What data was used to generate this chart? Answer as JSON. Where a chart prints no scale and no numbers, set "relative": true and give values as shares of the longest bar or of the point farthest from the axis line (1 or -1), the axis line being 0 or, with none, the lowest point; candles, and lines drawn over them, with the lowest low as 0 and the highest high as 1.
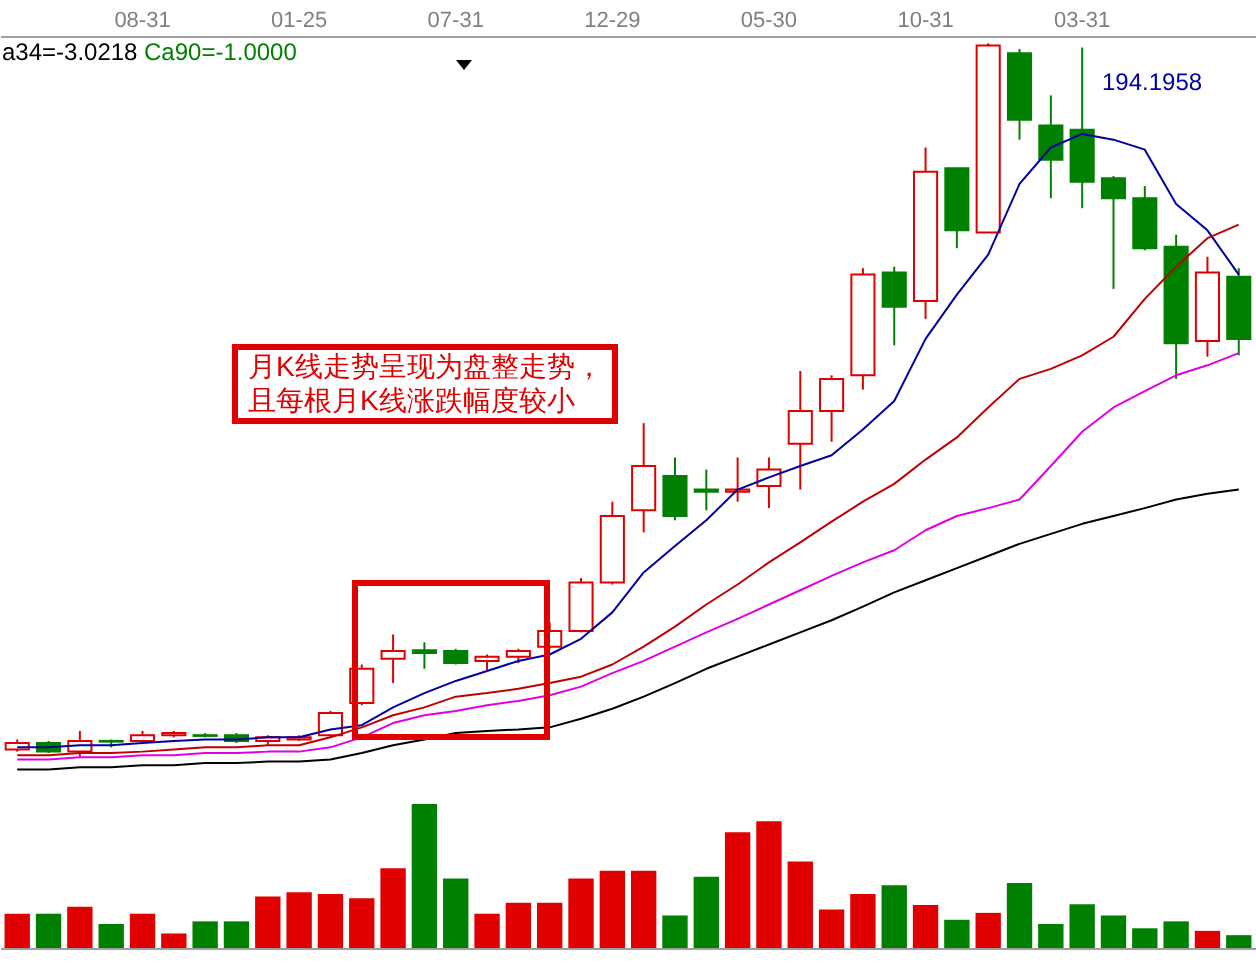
{
  "chart_data": [
    {
      "type": "candlestick",
      "relative": true,
      "categories": [
        null,
        null,
        null,
        null,
        "08-31",
        null,
        null,
        null,
        null,
        "01-25",
        null,
        null,
        null,
        null,
        "07-31",
        null,
        null,
        null,
        null,
        "12-29",
        null,
        null,
        null,
        null,
        "05-30",
        null,
        null,
        null,
        null,
        "10-31",
        null,
        null,
        null,
        null,
        "03-31",
        null,
        null,
        null,
        null,
        null
      ],
      "ohlc": [
        [
          0.011,
          0.025,
          0.008,
          0.02
        ],
        [
          0.02,
          0.023,
          0.006,
          0.008
        ],
        [
          0.008,
          0.037,
          0,
          0.023
        ],
        [
          0.023,
          0.025,
          0.014,
          0.022
        ],
        [
          0.023,
          0.037,
          0.02,
          0.031
        ],
        [
          0.031,
          0.037,
          0.028,
          0.034
        ],
        [
          0.031,
          0.034,
          0.028,
          0.03
        ],
        [
          0.031,
          0.034,
          0.02,
          0.023
        ],
        [
          0.023,
          0.031,
          0.017,
          0.028
        ],
        [
          0.025,
          0.031,
          0.023,
          0.028
        ],
        [
          0.031,
          0.065,
          0.028,
          0.062
        ],
        [
          0.076,
          0.13,
          0.073,
          0.124
        ],
        [
          0.138,
          0.172,
          0.104,
          0.149
        ],
        [
          0.15,
          0.161,
          0.124,
          0.146
        ],
        [
          0.149,
          0.152,
          0.13,
          0.132
        ],
        [
          0.135,
          0.144,
          0.121,
          0.141
        ],
        [
          0.141,
          0.152,
          0.132,
          0.149
        ],
        [
          0.155,
          0.189,
          0.152,
          0.177
        ],
        [
          0.177,
          0.251,
          0.175,
          0.245
        ],
        [
          0.245,
          0.358,
          0.242,
          0.338
        ],
        [
          0.346,
          0.468,
          0.315,
          0.408
        ],
        [
          0.394,
          0.42,
          0.332,
          0.338
        ],
        [
          0.375,
          0.403,
          0.346,
          0.372
        ],
        [
          0.372,
          0.42,
          0.358,
          0.375
        ],
        [
          0.38,
          0.42,
          0.349,
          0.403
        ],
        [
          0.439,
          0.541,
          0.375,
          0.485
        ],
        [
          0.485,
          0.535,
          0.442,
          0.53
        ],
        [
          0.535,
          0.685,
          0.515,
          0.676
        ],
        [
          0.679,
          0.687,
          0.577,
          0.631
        ],
        [
          0.639,
          0.854,
          0.614,
          0.82
        ],
        [
          0.825,
          0.825,
          0.713,
          0.738
        ],
        [
          0.735,
          1,
          0.735,
          0.997
        ],
        [
          0.986,
          0.992,
          0.865,
          0.893
        ],
        [
          0.885,
          0.927,
          0.783,
          0.837
        ],
        [
          0.879,
          0.994,
          0.769,
          0.806
        ],
        [
          0.811,
          0.814,
          0.656,
          0.783
        ],
        [
          0.783,
          0.8,
          0.71,
          0.713
        ],
        [
          0.715,
          0.732,
          0.53,
          0.58
        ],
        [
          0.583,
          0.701,
          0.561,
          0.679
        ],
        [
          0.673,
          0.685,
          0.563,
          0.586
        ]
      ],
      "colors": [
        "#e00000",
        "#008000",
        "#e00000",
        "#008000",
        "#e00000",
        "#e00000",
        "#008000",
        "#008000",
        "#e00000",
        "#e00000",
        "#e00000",
        "#e00000",
        "#e00000",
        "#008000",
        "#008000",
        "#e00000",
        "#e00000",
        "#e00000",
        "#e00000",
        "#e00000",
        "#e00000",
        "#008000",
        "#008000",
        "#e00000",
        "#e00000",
        "#e00000",
        "#e00000",
        "#e00000",
        "#008000",
        "#e00000",
        "#008000",
        "#e00000",
        "#008000",
        "#008000",
        "#008000",
        "#008000",
        "#008000",
        "#008000",
        "#e00000",
        "#008000"
      ],
      "series": [
        {
          "type": "line",
          "color": "#0000a0",
          "values": [
            0.014,
            0.014,
            0.017,
            0.017,
            0.02,
            0.023,
            0.025,
            0.025,
            0.028,
            0.028,
            0.039,
            0.045,
            0.07,
            0.09,
            0.107,
            0.121,
            0.135,
            0.144,
            0.166,
            0.203,
            0.259,
            0.296,
            0.332,
            0.375,
            0.392,
            0.408,
            0.423,
            0.459,
            0.499,
            0.586,
            0.648,
            0.704,
            0.803,
            0.854,
            0.873,
            0.865,
            0.851,
            0.775,
            0.738,
            0.676
          ]
        },
        {
          "type": "line",
          "color": "#c00000",
          "values": [
            0.003,
            0.003,
            0.006,
            0.006,
            0.008,
            0.011,
            0.014,
            0.014,
            0.017,
            0.017,
            0.028,
            0.042,
            0.059,
            0.07,
            0.085,
            0.09,
            0.096,
            0.104,
            0.113,
            0.13,
            0.155,
            0.183,
            0.214,
            0.242,
            0.273,
            0.301,
            0.33,
            0.358,
            0.383,
            0.417,
            0.448,
            0.49,
            0.53,
            0.544,
            0.563,
            0.589,
            0.642,
            0.687,
            0.727,
            0.746
          ]
        },
        {
          "type": "line",
          "color": "#e000e0",
          "values": [
            -0.003,
            -0.003,
            0,
            0,
            0.003,
            0.003,
            0.006,
            0.006,
            0.008,
            0.008,
            0.014,
            0.028,
            0.048,
            0.059,
            0.065,
            0.073,
            0.079,
            0.087,
            0.099,
            0.118,
            0.135,
            0.155,
            0.175,
            0.194,
            0.214,
            0.234,
            0.254,
            0.273,
            0.29,
            0.318,
            0.338,
            0.349,
            0.361,
            0.408,
            0.456,
            0.49,
            0.513,
            0.535,
            0.549,
            0.566
          ]
        },
        {
          "type": "line",
          "color": "#000000",
          "values": [
            -0.017,
            -0.017,
            -0.014,
            -0.014,
            -0.011,
            -0.011,
            -0.008,
            -0.008,
            -0.006,
            -0.006,
            -0.003,
            0.006,
            0.017,
            0.025,
            0.034,
            0.037,
            0.039,
            0.042,
            0.054,
            0.068,
            0.085,
            0.104,
            0.124,
            0.141,
            0.158,
            0.175,
            0.192,
            0.211,
            0.231,
            0.248,
            0.265,
            0.282,
            0.299,
            0.313,
            0.327,
            0.338,
            0.349,
            0.361,
            0.369,
            0.375
          ]
        }
      ],
      "annotations": [
        "a34=-3.0218",
        "Ca90=-1.0000",
        "月K线走势呈现为盘整走势，",
        "且每根月K线涨跌幅度较小",
        "194.1958"
      ]
    },
    {
      "type": "bar",
      "relative": true,
      "categories": [
        null,
        null,
        null,
        null,
        null,
        null,
        null,
        null,
        null,
        null,
        null,
        null,
        null,
        null,
        null,
        null,
        null,
        null,
        null,
        null,
        null,
        null,
        null,
        null,
        null,
        null,
        null,
        null,
        null,
        null,
        null,
        null,
        null,
        null,
        null,
        null,
        null,
        null,
        null,
        null
      ],
      "values": [
        0.238,
        0.238,
        0.286,
        0.167,
        0.238,
        0.101,
        0.185,
        0.185,
        0.357,
        0.387,
        0.375,
        0.345,
        0.554,
        1,
        0.482,
        0.238,
        0.315,
        0.315,
        0.482,
        0.536,
        0.536,
        0.226,
        0.494,
        0.804,
        0.881,
        0.601,
        0.268,
        0.375,
        0.435,
        0.298,
        0.196,
        0.244,
        0.452,
        0.167,
        0.304,
        0.226,
        0.137,
        0.185,
        0.119,
        0.089
      ],
      "colors": [
        "#e00000",
        "#008000",
        "#e00000",
        "#008000",
        "#e00000",
        "#e00000",
        "#008000",
        "#008000",
        "#e00000",
        "#e00000",
        "#e00000",
        "#e00000",
        "#e00000",
        "#008000",
        "#008000",
        "#e00000",
        "#e00000",
        "#e00000",
        "#e00000",
        "#e00000",
        "#e00000",
        "#008000",
        "#008000",
        "#e00000",
        "#e00000",
        "#e00000",
        "#e00000",
        "#e00000",
        "#008000",
        "#e00000",
        "#008000",
        "#e00000",
        "#008000",
        "#008000",
        "#008000",
        "#008000",
        "#008000",
        "#008000",
        "#e00000",
        "#008000"
      ]
    }
  ]
}
